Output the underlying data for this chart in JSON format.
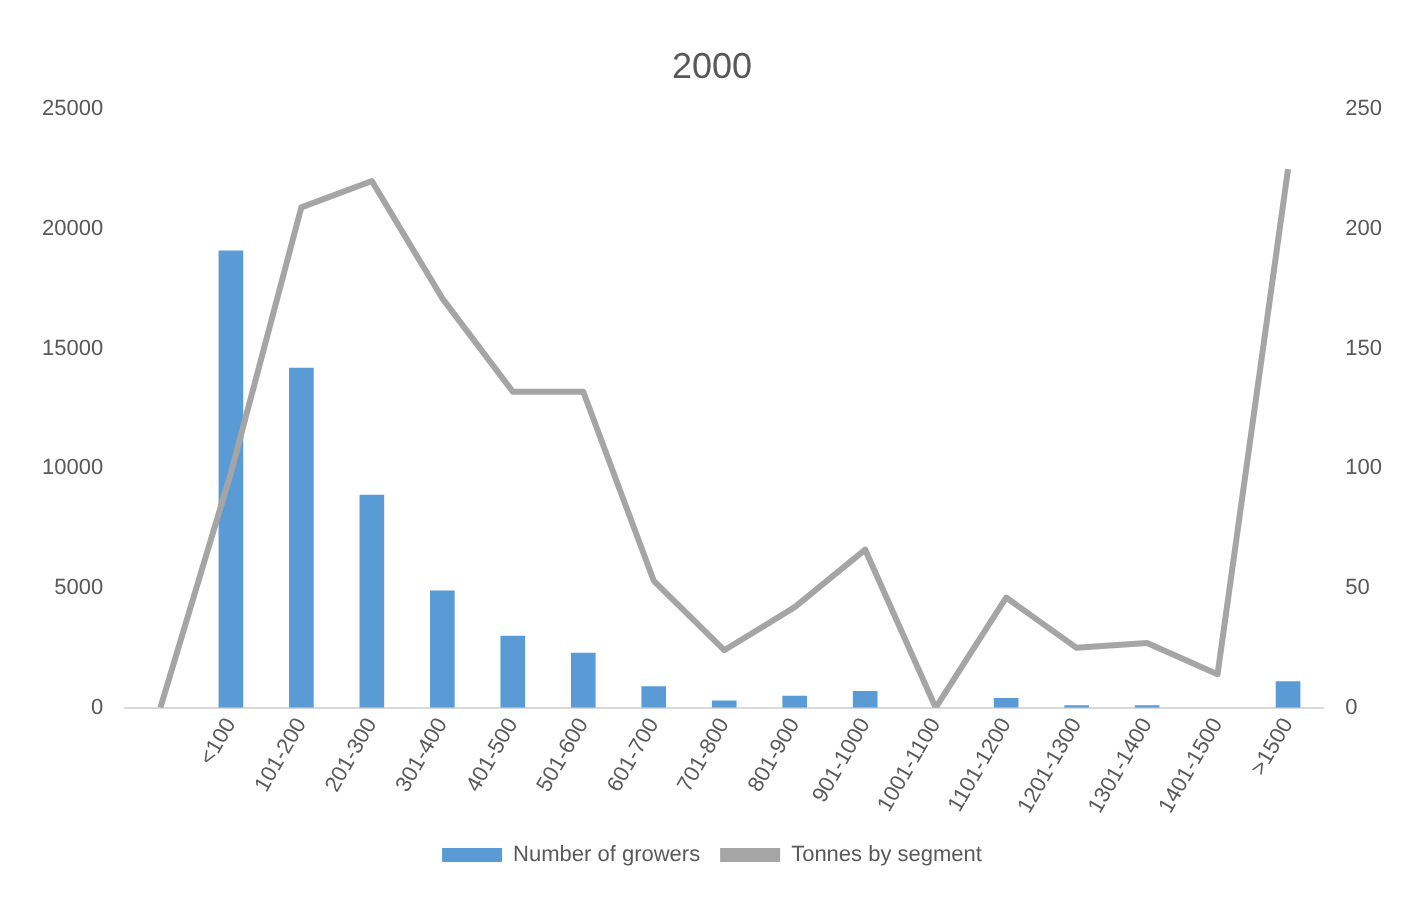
{
  "chart_data": {
    "type": "bar",
    "title": "2000",
    "categories": [
      null,
      "<100",
      "101-200",
      "201-300",
      "301-400",
      "401-500",
      "501-600",
      "601-700",
      "701-800",
      "801-900",
      "901-1000",
      "1001-1100",
      "1101-1200",
      "1201-1300",
      "1301-1400",
      "1401-1500",
      ">1500"
    ],
    "series": [
      {
        "name": "Number of growers",
        "color": "#5b9bd5",
        "values": [
          0,
          19100,
          14200,
          8900,
          4900,
          3000,
          2300,
          900,
          300,
          500,
          700,
          0,
          400,
          100,
          100,
          0,
          1100
        ]
      },
      {
        "name": "Tonnes by segment",
        "type": "line",
        "axis": "y2",
        "color": "#a5a5a5",
        "values": [
          0,
          98,
          209,
          220,
          171,
          132,
          132,
          53,
          24,
          42,
          66,
          0,
          46,
          25,
          27,
          14,
          225
        ]
      }
    ],
    "ylim": [
      0,
      25000
    ],
    "yticks": [
      0,
      5000,
      10000,
      15000,
      20000,
      25000
    ],
    "y2lim": [
      0,
      250
    ],
    "y2ticks": [
      0,
      50,
      100,
      150,
      200,
      250
    ],
    "grid": false,
    "legend": "bottom",
    "marker": "none"
  }
}
